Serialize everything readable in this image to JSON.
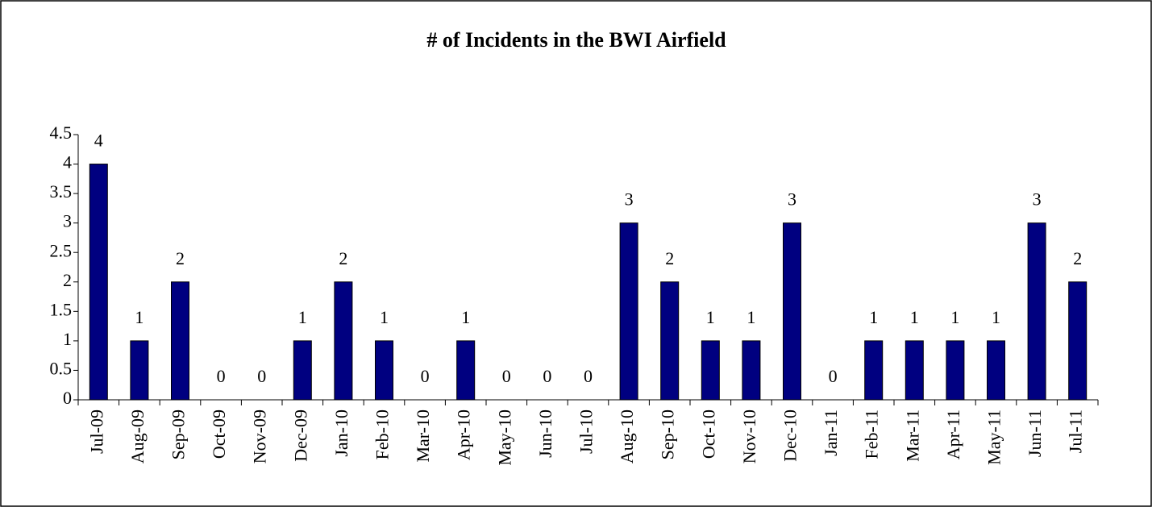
{
  "chart_data": {
    "type": "bar",
    "title": "# of Incidents in the BWI Airfield",
    "categories": [
      "Jul-09",
      "Aug-09",
      "Sep-09",
      "Oct-09",
      "Nov-09",
      "Dec-09",
      "Jan-10",
      "Feb-10",
      "Mar-10",
      "Apr-10",
      "May-10",
      "Jun-10",
      "Jul-10",
      "Aug-10",
      "Sep-10",
      "Oct-10",
      "Nov-10",
      "Dec-10",
      "Jan-11",
      "Feb-11",
      "Mar-11",
      "Apr-11",
      "May-11",
      "Jun-11",
      "Jul-11"
    ],
    "values": [
      4,
      1,
      2,
      0,
      0,
      1,
      2,
      1,
      0,
      1,
      0,
      0,
      0,
      3,
      2,
      1,
      1,
      3,
      0,
      1,
      1,
      1,
      1,
      3,
      2
    ],
    "color": "#000080",
    "ylim": [
      0,
      4.5
    ],
    "yticks": [
      0,
      0.5,
      1,
      1.5,
      2,
      2.5,
      3,
      3.5,
      4,
      4.5
    ],
    "grid": false
  }
}
